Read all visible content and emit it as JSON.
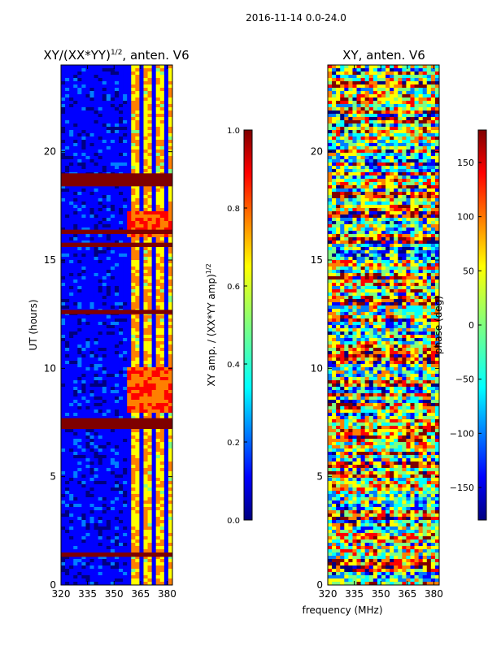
{
  "suptitle": "2016-11-14 0.0-24.0",
  "colors": {
    "jet": [
      "#00007f",
      "#0000ff",
      "#007fff",
      "#00ffff",
      "#7fff7f",
      "#ffff00",
      "#ff7f00",
      "#ff0000",
      "#7f0000"
    ]
  },
  "chart_data": [
    {
      "type": "heatmap",
      "title_main": "XY/(XX*YY)",
      "title_sup": "1/2",
      "title_tail": ", anten. V6",
      "ylabel": "UT (hours)",
      "xlabel": "",
      "xlim": [
        320,
        383
      ],
      "ylim": [
        0,
        24
      ],
      "xticks": [
        320,
        335,
        350,
        365,
        380
      ],
      "yticks": [
        0,
        5,
        10,
        15,
        20
      ],
      "colorbar": {
        "label_main": "XY amp. / (XX*YY amp)",
        "label_sup": "1/2",
        "range": [
          0.0,
          1.0
        ],
        "ticks": [
          "0.0",
          "0.2",
          "0.4",
          "0.6",
          "0.8",
          "1.0"
        ]
      },
      "flagged_bands_hours": [
        [
          18.4,
          19.0
        ],
        [
          7.2,
          7.7
        ],
        [
          1.3,
          1.5
        ],
        [
          12.5,
          12.7
        ],
        [
          16.2,
          16.4
        ],
        [
          15.6,
          15.8
        ]
      ]
    },
    {
      "type": "heatmap",
      "title_main": "XY, anten. V6",
      "ylabel": "",
      "xlabel": "frequency (MHz)",
      "xlim": [
        320,
        383
      ],
      "ylim": [
        0,
        24
      ],
      "xticks": [
        320,
        335,
        350,
        365,
        380
      ],
      "yticks": [
        0,
        5,
        10,
        15,
        20
      ],
      "colorbar": {
        "label_main": "phase (deg)",
        "range": [
          -180,
          180
        ],
        "ticks": [
          "150",
          "100",
          "50",
          "0",
          "−50",
          "−100",
          "−150"
        ]
      }
    }
  ]
}
